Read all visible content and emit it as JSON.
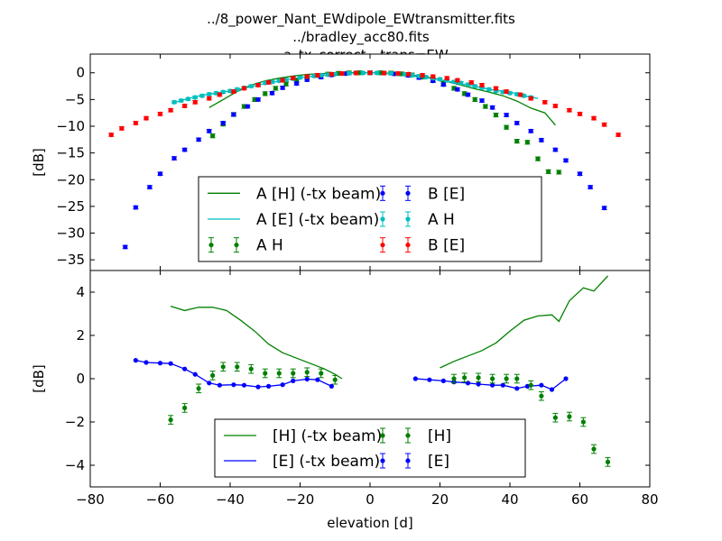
{
  "title_lines": [
    "../8_power_Nant_EWdipole_EWtransmitter.fits",
    "../bradley_acc80.fits",
    "--a_tx_correct --trans=EW"
  ],
  "colors": {
    "green": "#008000",
    "blue": "#0000ff",
    "cyan": "#00bfbf",
    "red": "#ff0000"
  },
  "chart_data": [
    {
      "type": "line",
      "xlabel": "",
      "ylabel": "[dB]",
      "xlim": [
        -80,
        80
      ],
      "ylim": [
        -37,
        3.5
      ],
      "xticks": [
        -80,
        -60,
        -40,
        -20,
        0,
        20,
        40,
        60,
        80
      ],
      "yticks": [
        0,
        -5,
        -10,
        -15,
        -20,
        -25,
        -30,
        -35
      ],
      "ytick_labels": [
        "0",
        "−5",
        "−10",
        "−15",
        "−20",
        "−25",
        "−30",
        "−35"
      ],
      "legend_position": "lower center",
      "legend": [
        {
          "label": "A [H] (-tx beam)",
          "kind": "line",
          "color": "#008000"
        },
        {
          "label": "A [E] (-tx beam)",
          "kind": "line",
          "color": "#00bfbf"
        },
        {
          "label": "A H",
          "kind": "errorbar",
          "color": "#008000"
        },
        {
          "label": "B [E]",
          "kind": "errorbar",
          "color": "#0000ff"
        },
        {
          "label": "A H",
          "kind": "errorbar",
          "color": "#00bfbf"
        },
        {
          "label": "B [E]",
          "kind": "errorbar",
          "color": "#ff0000"
        }
      ],
      "series": [
        {
          "name": "A [H] (-tx beam)",
          "style": "line",
          "color": "#008000",
          "x": [
            -46,
            -42,
            -38,
            -34,
            -30,
            -26,
            -22,
            -18,
            -14,
            -10,
            -6,
            -2,
            2,
            6,
            10,
            14,
            18,
            22,
            26,
            30,
            34,
            38,
            42,
            46,
            50,
            53
          ],
          "y": [
            -6.5,
            -5.0,
            -3.5,
            -2.3,
            -1.5,
            -1.0,
            -0.6,
            -0.3,
            -0.15,
            -0.05,
            0,
            0,
            0,
            -0.1,
            -0.3,
            -0.6,
            -1.0,
            -1.6,
            -2.3,
            -3.0,
            -3.6,
            -4.3,
            -5.3,
            -6.6,
            -7.5,
            -9.8
          ]
        },
        {
          "name": "A [E] (-tx beam)",
          "style": "line",
          "color": "#00bfbf",
          "x": [
            -56,
            -52,
            -48,
            -44,
            -40,
            -36,
            -32,
            -28,
            -24,
            -20,
            -16,
            -12,
            -8,
            -4,
            0,
            4,
            8,
            12,
            16,
            20,
            24,
            28,
            32,
            36,
            40,
            44,
            48
          ],
          "y": [
            -5.6,
            -4.8,
            -4.2,
            -3.8,
            -3.4,
            -2.9,
            -2.3,
            -1.8,
            -1.3,
            -0.9,
            -0.6,
            -0.35,
            -0.15,
            -0.05,
            0,
            -0.1,
            -0.3,
            -0.6,
            -0.9,
            -1.3,
            -1.8,
            -2.3,
            -2.8,
            -3.3,
            -3.6,
            -4.3,
            -4.8
          ]
        },
        {
          "name": "A H",
          "style": "errorbar",
          "color": "#008000",
          "x": [
            -45,
            -42,
            -39,
            -36,
            -33,
            -30,
            -27,
            -24,
            -21,
            -18,
            -15,
            -12,
            -9,
            -6,
            -3,
            0,
            3,
            6,
            9,
            12,
            15,
            18,
            21,
            24,
            27,
            30,
            33,
            36,
            39,
            42,
            45,
            48,
            51,
            54
          ],
          "y": [
            -11.8,
            -9.6,
            -7.8,
            -6.3,
            -5.0,
            -3.9,
            -2.9,
            -2.1,
            -1.4,
            -0.9,
            -0.5,
            -0.25,
            -0.1,
            -0.02,
            0,
            0,
            0,
            -0.05,
            -0.2,
            -0.4,
            -0.8,
            -1.3,
            -2.0,
            -2.9,
            -3.9,
            -5.0,
            -6.3,
            -7.9,
            -10.2,
            -12.8,
            -13.0,
            -16.1,
            -18.5,
            -18.6
          ],
          "err": 0.35
        },
        {
          "name": "B [E]",
          "style": "errorbar",
          "color": "#0000ff",
          "x": [
            -70,
            -67,
            -63,
            -60,
            -56,
            -53,
            -49,
            -46,
            -42,
            -39,
            -35,
            -32,
            -28,
            -25,
            -21,
            -18,
            -14,
            -11,
            -7,
            -4,
            0,
            4,
            7,
            11,
            14,
            18,
            21,
            25,
            28,
            32,
            35,
            39,
            42,
            46,
            49,
            53,
            56,
            60,
            63,
            67
          ],
          "y": [
            -32.6,
            -25.2,
            -21.4,
            -18.9,
            -16.0,
            -14.4,
            -12.5,
            -10.9,
            -9.4,
            -7.8,
            -6.3,
            -5.0,
            -3.8,
            -2.8,
            -2.0,
            -1.3,
            -0.8,
            -0.4,
            -0.15,
            -0.02,
            0,
            -0.05,
            -0.2,
            -0.5,
            -0.9,
            -1.5,
            -2.2,
            -3.1,
            -4.1,
            -5.2,
            -6.5,
            -7.9,
            -9.4,
            -10.9,
            -12.6,
            -14.4,
            -16.4,
            -18.9,
            -21.4,
            -25.3
          ],
          "err": 0.3
        },
        {
          "name": "A H",
          "style": "errorbar",
          "color": "#00bfbf",
          "x": [
            -56,
            -54,
            -52,
            -50,
            -48,
            -46,
            -44,
            -42,
            -40,
            -38,
            -36,
            -34,
            -32,
            -30,
            -28,
            -26,
            -24,
            -22,
            -20,
            -18,
            -16,
            -14,
            -12,
            -10,
            -8,
            -6,
            -4,
            -2,
            0,
            2,
            4,
            6,
            8,
            10,
            12,
            14,
            16,
            18,
            20,
            22,
            24,
            26,
            28,
            30,
            32,
            34,
            36,
            38,
            40,
            42,
            44,
            46
          ],
          "y": [
            -5.5,
            -5.2,
            -4.9,
            -4.6,
            -4.3,
            -4.0,
            -3.8,
            -3.6,
            -3.4,
            -3.1,
            -2.8,
            -2.5,
            -2.2,
            -1.9,
            -1.7,
            -1.5,
            -1.3,
            -1.1,
            -0.9,
            -0.75,
            -0.6,
            -0.45,
            -0.35,
            -0.25,
            -0.15,
            -0.1,
            -0.05,
            -0.02,
            0,
            -0.02,
            -0.05,
            -0.1,
            -0.2,
            -0.3,
            -0.45,
            -0.6,
            -0.8,
            -1.0,
            -1.2,
            -1.4,
            -1.7,
            -1.9,
            -2.2,
            -2.5,
            -2.8,
            -3.1,
            -3.4,
            -3.6,
            -3.8,
            -4.0,
            -4.3,
            -4.6
          ],
          "err": 0.25
        },
        {
          "name": "B [E]",
          "style": "errorbar",
          "color": "#ff0000",
          "x": [
            -74,
            -71,
            -67,
            -64,
            -60,
            -57,
            -53,
            -50,
            -46,
            -43,
            -39,
            -36,
            -32,
            -29,
            -25,
            -22,
            -18,
            -15,
            -11,
            -8,
            -4,
            0,
            4,
            8,
            11,
            15,
            18,
            22,
            25,
            29,
            32,
            36,
            39,
            43,
            46,
            50,
            53,
            57,
            60,
            64,
            67,
            71
          ],
          "y": [
            -11.6,
            -10.4,
            -9.4,
            -8.5,
            -7.7,
            -7.0,
            -6.2,
            -5.5,
            -4.8,
            -4.1,
            -3.5,
            -2.9,
            -2.3,
            -1.8,
            -1.4,
            -1.0,
            -0.7,
            -0.45,
            -0.25,
            -0.12,
            -0.04,
            0,
            -0.04,
            -0.12,
            -0.25,
            -0.45,
            -0.7,
            -1.0,
            -1.4,
            -1.8,
            -2.3,
            -2.9,
            -3.5,
            -4.1,
            -4.8,
            -5.5,
            -6.2,
            -7.0,
            -7.7,
            -8.5,
            -9.7,
            -11.6
          ],
          "err": 0.3
        }
      ]
    },
    {
      "type": "line",
      "xlabel": "elevation [d]",
      "ylabel": "[dB]",
      "xlim": [
        -80,
        80
      ],
      "ylim": [
        -5,
        5
      ],
      "xticks": [
        -80,
        -60,
        -40,
        -20,
        0,
        20,
        40,
        60,
        80
      ],
      "xtick_labels": [
        "−80",
        "−60",
        "−40",
        "−20",
        "0",
        "20",
        "40",
        "60",
        "80"
      ],
      "yticks": [
        4,
        2,
        0,
        -2,
        -4
      ],
      "ytick_labels": [
        "4",
        "2",
        "0",
        "−2",
        "−4"
      ],
      "legend_position": "lower center",
      "legend": [
        {
          "label": "[H] (-tx beam)",
          "kind": "line",
          "color": "#008000"
        },
        {
          "label": "[E] (-tx beam)",
          "kind": "line",
          "color": "#0000ff"
        },
        {
          "label": "[H]",
          "kind": "errorbar",
          "color": "#008000"
        },
        {
          "label": "[E]",
          "kind": "errorbar",
          "color": "#0000ff"
        }
      ],
      "series": [
        {
          "name": "[H] (-tx beam)",
          "style": "line",
          "color": "#008000",
          "x": [
            -57,
            -53,
            -49,
            -45,
            -41,
            -37,
            -33,
            -29,
            -25,
            -21,
            -17,
            -13,
            -10,
            -8
          ],
          "y": [
            3.35,
            3.15,
            3.3,
            3.3,
            3.15,
            2.7,
            2.2,
            1.6,
            1.2,
            0.95,
            0.7,
            0.45,
            0.2,
            0
          ],
          "gap": true
        },
        {
          "name": "[H] (-tx beam) right",
          "style": "line",
          "color": "#008000",
          "x": [
            20,
            24,
            28,
            32,
            36,
            40,
            44,
            48,
            52,
            54,
            57,
            61,
            64,
            68
          ],
          "y": [
            0.5,
            0.8,
            1.05,
            1.3,
            1.65,
            2.2,
            2.7,
            2.9,
            2.95,
            2.65,
            3.6,
            4.2,
            4.05,
            4.75
          ]
        },
        {
          "name": "[E] (-tx beam)",
          "style": "linemarker",
          "color": "#0000ff",
          "x": [
            -67,
            -64,
            -60,
            -57,
            -53,
            -50,
            -46,
            -43,
            -39,
            -36,
            -32,
            -29,
            -25,
            -22,
            -18,
            -15,
            -11
          ],
          "y": [
            0.85,
            0.75,
            0.72,
            0.7,
            0.45,
            0.2,
            -0.2,
            -0.3,
            -0.28,
            -0.3,
            -0.38,
            -0.35,
            -0.28,
            -0.1,
            -0.02,
            -0.05,
            -0.35
          ]
        },
        {
          "name": "[E] (-tx beam) right",
          "style": "linemarker",
          "color": "#0000ff",
          "x": [
            13,
            17,
            21,
            24,
            28,
            31,
            35,
            38,
            42,
            45,
            49,
            52,
            56
          ],
          "y": [
            0,
            -0.05,
            -0.1,
            -0.15,
            -0.2,
            -0.25,
            -0.3,
            -0.3,
            -0.45,
            -0.35,
            -0.3,
            -0.5,
            0
          ]
        },
        {
          "name": "[H]",
          "style": "errorbar",
          "color": "#008000",
          "x": [
            -57,
            -53,
            -49,
            -45,
            -42,
            -38,
            -34,
            -30,
            -26,
            -22,
            -18,
            -14,
            -10,
            24,
            27,
            31,
            35,
            39,
            42,
            46,
            49,
            53,
            57,
            61,
            64,
            68
          ],
          "y": [
            -1.9,
            -1.35,
            -0.45,
            0.15,
            0.55,
            0.55,
            0.45,
            0.25,
            0.25,
            0.25,
            0.3,
            0.25,
            -0.05,
            0,
            0.05,
            0.05,
            0,
            0,
            0,
            -0.3,
            -0.8,
            -1.8,
            -1.75,
            -2.0,
            -3.25,
            -3.85
          ],
          "err": 0.2
        },
        {
          "name": "[E]",
          "style": "errorbar",
          "color": "#0000ff",
          "x": [],
          "y": [],
          "err": 0.1
        }
      ]
    }
  ]
}
